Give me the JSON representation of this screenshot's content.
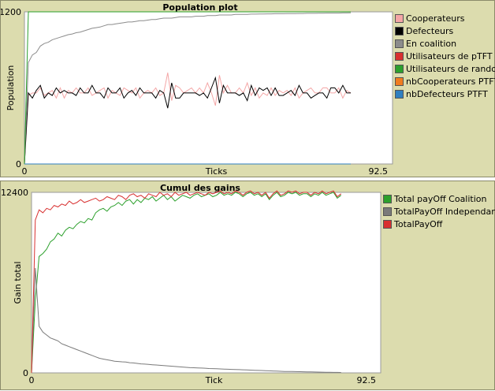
{
  "chart_data": [
    {
      "type": "line",
      "title": "Population plot",
      "xlabel": "Ticks",
      "ylabel": "Population",
      "xlim": [
        0,
        92.5
      ],
      "ylim": [
        0,
        1200
      ],
      "x_tick_labels": [
        "0",
        "92.5"
      ],
      "y_tick_labels": [
        "0",
        "1200"
      ],
      "legend_position": "right",
      "series": [
        {
          "name": "Cooperateurs",
          "color": "#f4a6a6",
          "values": [
            0,
            540,
            560,
            560,
            600,
            540,
            560,
            580,
            520,
            600,
            520,
            580,
            560,
            600,
            560,
            560,
            600,
            540,
            560,
            580,
            600,
            520,
            580,
            560,
            540,
            600,
            580,
            560,
            600,
            520,
            560,
            580,
            560,
            600,
            540,
            560,
            720,
            500,
            620,
            600,
            560,
            580,
            600,
            560,
            600,
            560,
            640,
            560,
            460,
            700,
            560,
            620,
            560,
            560,
            600,
            560,
            640,
            540,
            600,
            520,
            560,
            540,
            600,
            540,
            580,
            560,
            580,
            540,
            600,
            520,
            560,
            580,
            600,
            560,
            560,
            600,
            600,
            560,
            560,
            600,
            520,
            580,
            560
          ]
        },
        {
          "name": "Defecteurs",
          "color": "#000000",
          "values": [
            0,
            560,
            520,
            580,
            620,
            520,
            560,
            540,
            600,
            560,
            580,
            560,
            560,
            540,
            600,
            560,
            560,
            620,
            560,
            560,
            520,
            600,
            560,
            560,
            600,
            520,
            560,
            580,
            540,
            600,
            560,
            560,
            560,
            520,
            580,
            560,
            440,
            640,
            520,
            520,
            560,
            560,
            560,
            560,
            540,
            560,
            520,
            600,
            680,
            480,
            620,
            560,
            560,
            560,
            540,
            560,
            500,
            620,
            540,
            600,
            580,
            600,
            540,
            600,
            540,
            540,
            560,
            580,
            540,
            620,
            560,
            560,
            520,
            540,
            560,
            560,
            520,
            600,
            600,
            560,
            620,
            560,
            560
          ]
        },
        {
          "name": "En coalition",
          "color": "#8c8c8c",
          "values": [
            0,
            800,
            860,
            880,
            930,
            950,
            960,
            980,
            990,
            1000,
            1010,
            1020,
            1025,
            1035,
            1040,
            1050,
            1060,
            1070,
            1075,
            1080,
            1090,
            1100,
            1100,
            1105,
            1110,
            1115,
            1120,
            1120,
            1125,
            1130,
            1130,
            1135,
            1140,
            1140,
            1145,
            1150,
            1150,
            1150,
            1155,
            1160,
            1160,
            1160,
            1160,
            1165,
            1165,
            1165,
            1170,
            1170,
            1170,
            1175,
            1175,
            1175,
            1175,
            1180,
            1180,
            1180,
            1180,
            1182,
            1182,
            1183,
            1183,
            1184,
            1184,
            1185,
            1185,
            1185,
            1186,
            1186,
            1186,
            1187,
            1187,
            1188,
            1188,
            1188,
            1189,
            1189,
            1190,
            1190,
            1190,
            1190,
            1191,
            1191,
            1192
          ]
        },
        {
          "name": "Utilisateurs de pTFT",
          "color": "#d83030",
          "values": []
        },
        {
          "name": "Utilisateurs de random",
          "color": "#2ca02c",
          "values": [
            0,
            1200,
            1200,
            1200,
            1200,
            1200,
            1200,
            1200,
            1200,
            1200,
            1200,
            1200,
            1200,
            1200,
            1200,
            1200,
            1200,
            1200,
            1200,
            1200,
            1200,
            1200,
            1200,
            1200,
            1200,
            1200,
            1200,
            1200,
            1200,
            1200,
            1200,
            1200,
            1200,
            1200,
            1200,
            1200,
            1200,
            1200,
            1200,
            1200,
            1200,
            1200,
            1200,
            1200,
            1200,
            1200,
            1200,
            1200,
            1200,
            1200,
            1200,
            1200,
            1200,
            1200,
            1200,
            1200,
            1200,
            1200,
            1200,
            1200,
            1200,
            1200,
            1200,
            1200,
            1200,
            1200,
            1200,
            1200,
            1200,
            1200,
            1200,
            1200,
            1200,
            1200,
            1200,
            1200,
            1200,
            1200,
            1200,
            1200,
            1200,
            1200,
            1200
          ]
        },
        {
          "name": "nbCooperateurs PTFT",
          "color": "#f07c20",
          "values": [
            0,
            0,
            0,
            0,
            0,
            0,
            0,
            0,
            0,
            0,
            0,
            0,
            0,
            0,
            0,
            0,
            0,
            0,
            0,
            0,
            0,
            0,
            0,
            0,
            0,
            0,
            0,
            0,
            0,
            0,
            0,
            0,
            0,
            0,
            0,
            0,
            0,
            0,
            0,
            0,
            0,
            0,
            0,
            0,
            0,
            0,
            0,
            0,
            0,
            0,
            0,
            0,
            0,
            0,
            0,
            0,
            0,
            0,
            0,
            0,
            0,
            0,
            0,
            0,
            0,
            0,
            0,
            0,
            0,
            0,
            0,
            0,
            0,
            0,
            0,
            0,
            0,
            0,
            0,
            0,
            0,
            0,
            0
          ]
        },
        {
          "name": "nbDefecteurs PTFT",
          "color": "#2f7fc0",
          "values": [
            0,
            0,
            0,
            0,
            0,
            0,
            0,
            0,
            0,
            0,
            0,
            0,
            0,
            0,
            0,
            0,
            0,
            0,
            0,
            0,
            0,
            0,
            0,
            0,
            0,
            0,
            0,
            0,
            0,
            0,
            0,
            0,
            0,
            0,
            0,
            0,
            0,
            0,
            0,
            0,
            0,
            0,
            0,
            0,
            0,
            0,
            0,
            0,
            0,
            0,
            0,
            0,
            0,
            0,
            0,
            0,
            0,
            0,
            0,
            0,
            0,
            0,
            0,
            0,
            0,
            0,
            0,
            0,
            0,
            0,
            0,
            0,
            0,
            0,
            0,
            0,
            0,
            0,
            0,
            0,
            0,
            0,
            0
          ]
        }
      ]
    },
    {
      "type": "line",
      "title": "Cumul des gains",
      "xlabel": "Tick",
      "ylabel": "Gain total",
      "xlim": [
        0,
        92.5
      ],
      "ylim": [
        0,
        12400
      ],
      "x_tick_labels": [
        "0",
        "92.5"
      ],
      "y_tick_labels": [
        "0",
        "12400"
      ],
      "legend_position": "right",
      "series": [
        {
          "name": "Total payOff Coalition",
          "color": "#2ca02c",
          "values": [
            0,
            5000,
            8000,
            8200,
            8500,
            9000,
            9200,
            9600,
            9400,
            9800,
            10000,
            9900,
            10200,
            10400,
            10300,
            10600,
            10500,
            11000,
            11200,
            11300,
            11100,
            11400,
            11500,
            11700,
            11500,
            11800,
            11900,
            11600,
            11900,
            11700,
            12000,
            11900,
            12100,
            11800,
            12000,
            12200,
            11900,
            12100,
            11800,
            12000,
            12200,
            12100,
            12000,
            12200,
            12300,
            12100,
            12200,
            12300,
            12100,
            12200,
            12400,
            12200,
            12300,
            12200,
            12400,
            12300,
            12100,
            12300,
            12400,
            12200,
            12300,
            12100,
            12300,
            11900,
            12200,
            12400,
            12100,
            12200,
            12400,
            12300,
            12400,
            12200,
            12300,
            12300,
            12100,
            12300,
            12200,
            12400,
            12200,
            12300,
            12400,
            12000,
            12200
          ]
        },
        {
          "name": "TotalPayOff Independant",
          "color": "#7a7a7a",
          "values": [
            0,
            7200,
            3200,
            2800,
            2600,
            2400,
            2300,
            2200,
            2000,
            1900,
            1800,
            1700,
            1600,
            1500,
            1400,
            1300,
            1200,
            1100,
            1000,
            950,
            900,
            850,
            800,
            780,
            760,
            740,
            700,
            680,
            650,
            620,
            600,
            580,
            560,
            540,
            520,
            500,
            480,
            460,
            440,
            420,
            400,
            380,
            360,
            350,
            340,
            330,
            320,
            300,
            290,
            280,
            270,
            260,
            250,
            240,
            230,
            220,
            210,
            200,
            190,
            180,
            170,
            160,
            150,
            140,
            130,
            120,
            110,
            100,
            95,
            90,
            85,
            80,
            75,
            70,
            65,
            60,
            55,
            50,
            45,
            40,
            35,
            30,
            25
          ]
        },
        {
          "name": "TotalPayOff",
          "color": "#d83030",
          "values": [
            0,
            10500,
            11200,
            11000,
            11300,
            11200,
            11500,
            11400,
            11600,
            11500,
            11800,
            11600,
            11700,
            11900,
            11700,
            11800,
            11900,
            12000,
            11800,
            11900,
            12100,
            12000,
            11900,
            12200,
            12100,
            11900,
            12200,
            12300,
            12100,
            12200,
            12000,
            12300,
            12200,
            12100,
            12400,
            12200,
            12300,
            12100,
            12400,
            12200,
            12300,
            12400,
            12200,
            12300,
            12400,
            12300,
            12200,
            12400,
            12300,
            12400,
            12500,
            12300,
            12400,
            12300,
            12500,
            12400,
            12200,
            12400,
            12500,
            12300,
            12400,
            12200,
            12400,
            12000,
            12300,
            12500,
            12200,
            12300,
            12500,
            12400,
            12500,
            12300,
            12400,
            12400,
            12200,
            12400,
            12300,
            12500,
            12300,
            12400,
            12500,
            12100,
            12300
          ]
        }
      ]
    }
  ]
}
